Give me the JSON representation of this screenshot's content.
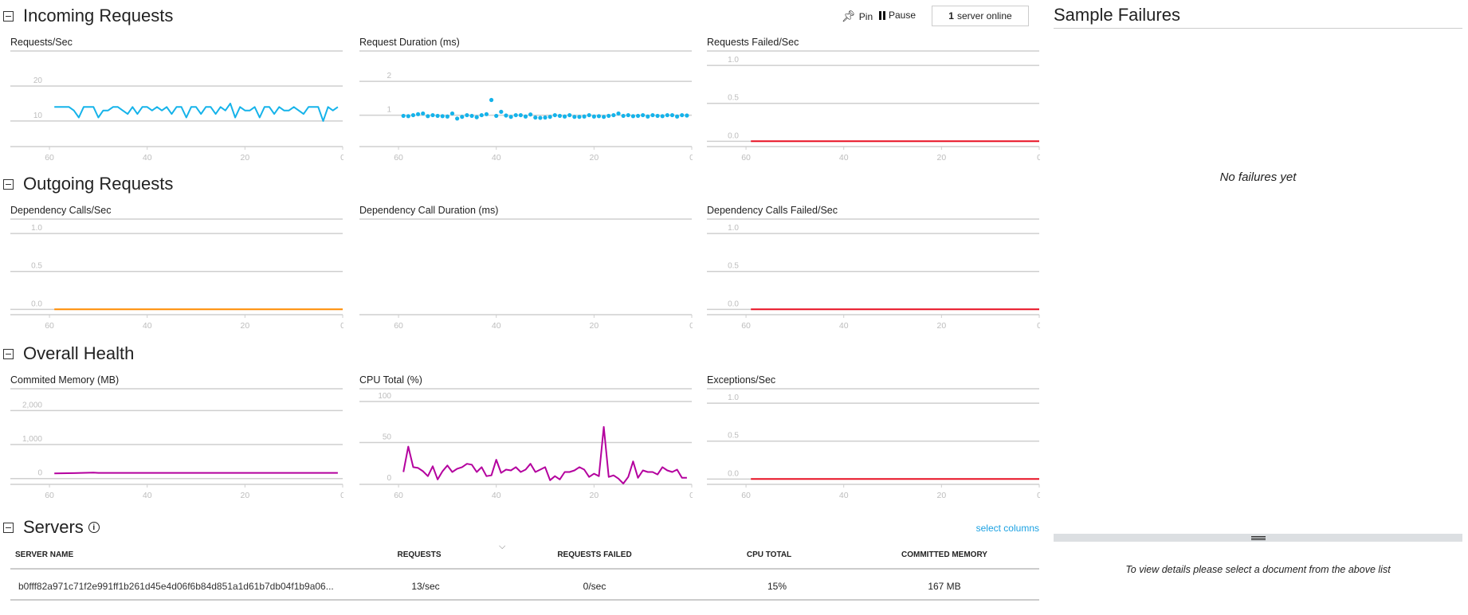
{
  "colors": {
    "requests": "#15b3ea",
    "failed": "#e81123",
    "dependency": "#ff8c00",
    "health": "#b4009e",
    "grid": "#cfcfcf",
    "tick": "#bdbdbd"
  },
  "sections": {
    "incoming": "Incoming Requests",
    "outgoing": "Outgoing Requests",
    "health": "Overall Health",
    "servers": "Servers"
  },
  "toolbar": {
    "pin": "Pin",
    "pause": "Pause",
    "server_count": "1",
    "server_online": "server online"
  },
  "side": {
    "title": "Sample Failures",
    "empty": "No failures yet",
    "details_hint": "To view details please select a document from the above list"
  },
  "servers": {
    "select_columns": "select columns",
    "columns": [
      "SERVER NAME",
      "REQUESTS",
      "REQUESTS FAILED",
      "CPU TOTAL",
      "COMMITTED MEMORY"
    ],
    "rows": [
      [
        "b0fff82a971c71f2e991ff1b261d45e4d06f6b84d851a1d61b7db04f1b9a06...",
        "13/sec",
        "0/sec",
        "15%",
        "167 MB"
      ]
    ]
  },
  "chart_data": [
    {
      "id": "requests-sec",
      "type": "line",
      "title": "Requests/Sec",
      "color": "requests",
      "xlim": [
        68,
        0
      ],
      "xticks": [
        60,
        40,
        20,
        0
      ],
      "ylim": [
        2.7,
        30
      ],
      "yticks": [
        10,
        20
      ],
      "x": [
        59,
        58,
        57,
        56,
        55,
        54,
        53,
        52,
        51,
        50,
        49,
        48,
        47,
        46,
        45,
        44,
        43,
        42,
        41,
        40,
        39,
        38,
        37,
        36,
        35,
        34,
        33,
        32,
        31,
        30,
        29,
        28,
        27,
        26,
        25,
        24,
        23,
        22,
        21,
        20,
        19,
        18,
        17,
        16,
        15,
        14,
        13,
        12,
        11,
        10,
        9,
        8,
        7,
        6,
        5,
        4,
        3,
        2,
        1
      ],
      "values": [
        14,
        14,
        14,
        14,
        13,
        11,
        14,
        14,
        14,
        11,
        13,
        13,
        14,
        14,
        13,
        12,
        14,
        12,
        14,
        14,
        13,
        14,
        13,
        14,
        12,
        14,
        14,
        11,
        14,
        14,
        12,
        14,
        14,
        12,
        14,
        13,
        15,
        11,
        14,
        13,
        13,
        14,
        11,
        14,
        14,
        12,
        14,
        13,
        13,
        14,
        13,
        12,
        14,
        14,
        14,
        10,
        14,
        13,
        14
      ]
    },
    {
      "id": "request-duration",
      "type": "scatter",
      "title": "Request Duration (ms)",
      "color": "requests",
      "xlim": [
        68,
        0
      ],
      "xticks": [
        60,
        40,
        20,
        0
      ],
      "ylim": [
        0.07,
        2.9
      ],
      "yticks": [
        1,
        2
      ],
      "x": [
        59,
        58,
        57,
        56,
        55,
        54,
        53,
        52,
        51,
        50,
        49,
        48,
        47,
        46,
        45,
        44,
        43,
        42,
        41,
        40,
        39,
        38,
        37,
        36,
        35,
        34,
        33,
        32,
        31,
        30,
        29,
        28,
        27,
        26,
        25,
        24,
        23,
        22,
        21,
        20,
        19,
        18,
        17,
        16,
        15,
        14,
        13,
        12,
        11,
        10,
        9,
        8,
        7,
        6,
        5,
        4,
        3,
        2,
        1
      ],
      "values": [
        0.98,
        0.97,
        1.0,
        1.03,
        1.05,
        0.97,
        1.0,
        0.98,
        0.97,
        0.96,
        1.05,
        0.9,
        0.95,
        1.0,
        0.98,
        0.94,
        1.0,
        1.03,
        1.45,
        0.98,
        1.1,
        0.99,
        0.95,
        1.0,
        1.0,
        0.96,
        1.02,
        0.93,
        0.92,
        0.93,
        0.95,
        1.0,
        0.98,
        0.96,
        1.0,
        0.95,
        0.95,
        0.96,
        1.0,
        0.96,
        0.97,
        0.95,
        0.98,
        1.0,
        1.05,
        0.98,
        1.0,
        0.97,
        0.98,
        1.0,
        0.96,
        1.0,
        0.98,
        0.97,
        1.0,
        1.0,
        0.96,
        1.0,
        0.99
      ]
    },
    {
      "id": "requests-failed",
      "type": "line",
      "title": "Requests Failed/Sec",
      "color": "failed",
      "xlim": [
        68,
        0
      ],
      "xticks": [
        60,
        40,
        20,
        0
      ],
      "ylim": [
        -0.07,
        1.19
      ],
      "yticks": [
        0.0,
        0.5,
        1.0
      ],
      "ytick_labels": [
        "0.0",
        "0.5",
        "1.0"
      ],
      "x": [
        59,
        0
      ],
      "values": [
        0,
        0
      ]
    },
    {
      "id": "dependency-calls",
      "type": "line",
      "title": "Dependency Calls/Sec",
      "color": "dependency",
      "xlim": [
        68,
        0
      ],
      "xticks": [
        60,
        40,
        20,
        0
      ],
      "ylim": [
        -0.07,
        1.19
      ],
      "yticks": [
        0.0,
        0.5,
        1.0
      ],
      "ytick_labels": [
        "0.0",
        "0.5",
        "1.0"
      ],
      "x": [
        59,
        0
      ],
      "values": [
        0,
        0
      ]
    },
    {
      "id": "dependency-duration",
      "type": "line",
      "title": "Dependency Call Duration (ms)",
      "color": "dependency",
      "xlim": [
        68,
        0
      ],
      "xticks": [
        60,
        40,
        20,
        0
      ],
      "ylim": [
        0,
        1
      ],
      "yticks": [],
      "x": [],
      "values": []
    },
    {
      "id": "dependency-failed",
      "type": "line",
      "title": "Dependency Calls Failed/Sec",
      "color": "failed",
      "xlim": [
        68,
        0
      ],
      "xticks": [
        60,
        40,
        20,
        0
      ],
      "ylim": [
        -0.07,
        1.19
      ],
      "yticks": [
        0.0,
        0.5,
        1.0
      ],
      "ytick_labels": [
        "0.0",
        "0.5",
        "1.0"
      ],
      "x": [
        59,
        0
      ],
      "values": [
        0,
        0
      ]
    },
    {
      "id": "committed-memory",
      "type": "line",
      "title": "Commited Memory (MB)",
      "color": "health",
      "xlim": [
        68,
        0
      ],
      "xticks": [
        60,
        40,
        20,
        0
      ],
      "ylim": [
        -170,
        2640
      ],
      "yticks": [
        0,
        1000,
        2000
      ],
      "ytick_labels": [
        "0",
        "1,000",
        "2,000"
      ],
      "x": [
        59,
        55,
        51,
        50,
        1
      ],
      "values": [
        150,
        160,
        175,
        167,
        167
      ]
    },
    {
      "id": "cpu-total",
      "type": "line",
      "title": "CPU Total (%)",
      "color": "health",
      "xlim": [
        68,
        0
      ],
      "xticks": [
        60,
        40,
        20,
        0
      ],
      "ylim": [
        -1,
        115.5
      ],
      "yticks": [
        0,
        50,
        100
      ],
      "x": [
        59,
        58,
        57,
        56,
        55,
        54,
        53,
        52,
        51,
        50,
        49,
        48,
        47,
        46,
        45,
        44,
        43,
        42,
        41,
        40,
        39,
        38,
        37,
        36,
        35,
        34,
        33,
        32,
        31,
        30,
        29,
        28,
        27,
        26,
        25,
        24,
        23,
        22,
        21,
        20,
        19,
        18,
        17,
        16,
        15,
        14,
        13,
        12,
        11,
        10,
        9,
        8,
        7,
        6,
        5,
        4,
        3,
        2,
        1
      ],
      "values": [
        14,
        45,
        20,
        19,
        15,
        9,
        21,
        5,
        15,
        22,
        14,
        18,
        20,
        24,
        23,
        14,
        20,
        9,
        10,
        29,
        13,
        17,
        16,
        20,
        14,
        17,
        24,
        14,
        17,
        20,
        4,
        9,
        5,
        14,
        14,
        16,
        20,
        17,
        8,
        12,
        9,
        69,
        8,
        10,
        6,
        0,
        8,
        27,
        7,
        16,
        14,
        14,
        11,
        20,
        16,
        14,
        17,
        7,
        7
      ]
    },
    {
      "id": "exceptions",
      "type": "line",
      "title": "Exceptions/Sec",
      "color": "failed",
      "xlim": [
        68,
        0
      ],
      "xticks": [
        60,
        40,
        20,
        0
      ],
      "ylim": [
        -0.07,
        1.19
      ],
      "yticks": [
        0.0,
        0.5,
        1.0
      ],
      "ytick_labels": [
        "0.0",
        "0.5",
        "1.0"
      ],
      "x": [
        59,
        0
      ],
      "values": [
        0,
        0
      ]
    }
  ]
}
